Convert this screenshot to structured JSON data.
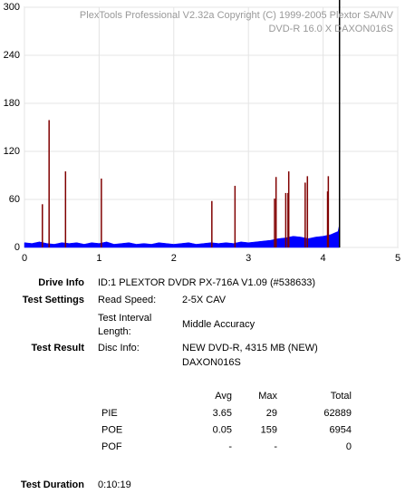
{
  "chart_data": {
    "type": "area",
    "title": "PlexTools Professional V2.32a Copyright (C) 1999-2005 Plextor SA/NV",
    "subtitle": "DVD-R   16.0 X   DAXON016S",
    "xlim": [
      0,
      5
    ],
    "xticks": [
      0,
      1,
      2,
      3,
      4,
      5
    ],
    "ylim": [
      0,
      300
    ],
    "yticks": [
      0,
      60,
      120,
      180,
      240,
      300
    ],
    "grid": true,
    "legend": false,
    "end_x": 4.22,
    "series": [
      {
        "name": "PIE",
        "color": "#0000ff",
        "style": "area",
        "x": [
          0,
          0.1,
          0.2,
          0.3,
          0.4,
          0.5,
          0.6,
          0.7,
          0.8,
          0.9,
          1.0,
          1.1,
          1.2,
          1.3,
          1.4,
          1.5,
          1.6,
          1.7,
          1.8,
          1.9,
          2.0,
          2.1,
          2.2,
          2.3,
          2.4,
          2.5,
          2.6,
          2.7,
          2.8,
          2.9,
          3.0,
          3.1,
          3.2,
          3.3,
          3.4,
          3.5,
          3.6,
          3.7,
          3.8,
          3.9,
          4.0,
          4.1,
          4.2,
          4.22
        ],
        "values": [
          6,
          5,
          7,
          5,
          4,
          6,
          5,
          6,
          4,
          6,
          5,
          7,
          4,
          5,
          6,
          4,
          5,
          4,
          6,
          5,
          4,
          5,
          6,
          4,
          5,
          6,
          5,
          6,
          5,
          7,
          6,
          7,
          8,
          9,
          11,
          12,
          14,
          13,
          11,
          13,
          14,
          16,
          20,
          29
        ]
      },
      {
        "name": "POE",
        "color": "#800000",
        "style": "spike",
        "x": [
          0.24,
          0.33,
          0.55,
          1.03,
          2.51,
          2.82,
          3.35,
          3.37,
          3.5,
          3.53,
          3.54,
          3.76,
          3.79,
          4.06,
          4.07
        ],
        "values": [
          54,
          159,
          95,
          86,
          58,
          77,
          61,
          88,
          68,
          68,
          95,
          81,
          89,
          70,
          89
        ]
      }
    ]
  },
  "info": {
    "drive": {
      "label": "Drive Info",
      "value": "ID:1 PLEXTOR DVDR PX-716A V1.09 (#538633)"
    },
    "settings": {
      "label": "Test Settings",
      "speed_label": "Read Speed:",
      "speed": "2-5X CAV",
      "interval_label": [
        "Test Interval",
        "Length:"
      ],
      "interval": "Middle Accuracy"
    },
    "result": {
      "label": "Test Result",
      "disc_label": "Disc Info:",
      "disc": [
        "NEW DVD-R, 4315 MB (NEW)",
        "DAXON016S"
      ]
    },
    "duration": {
      "label": "Test Duration",
      "value": "0:10:19"
    }
  },
  "table": {
    "header": [
      "Avg",
      "Max",
      "Total"
    ],
    "rows": [
      [
        "PIE",
        "3.65",
        "29",
        "62889"
      ],
      [
        "POE",
        "0.05",
        "159",
        "6954"
      ],
      [
        "POF",
        "-",
        "-",
        "0"
      ]
    ]
  }
}
